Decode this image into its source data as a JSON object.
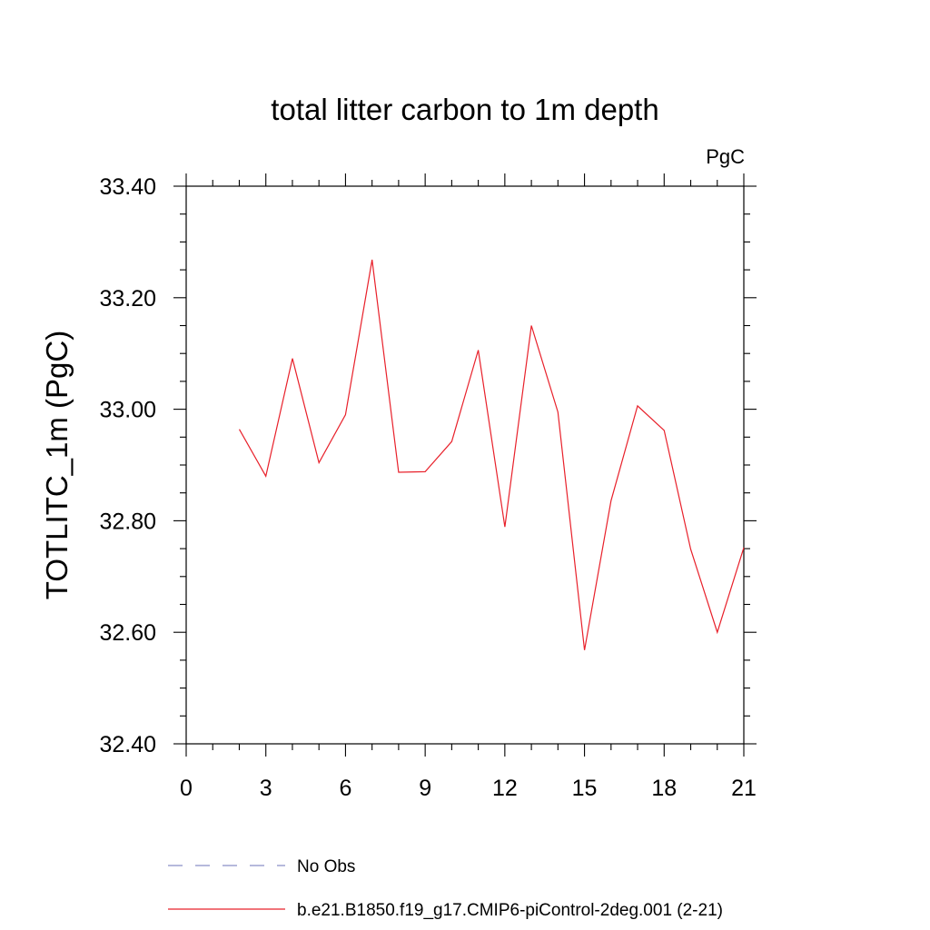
{
  "chart_data": {
    "type": "line",
    "title": "total litter carbon to 1m depth",
    "units": "PgC",
    "ylabel": "TOTLITC_1m  (PgC)",
    "xlabel": "",
    "xlim": [
      0,
      21
    ],
    "ylim": [
      32.4,
      33.4
    ],
    "x_ticks": [
      "0",
      "3",
      "6",
      "9",
      "12",
      "15",
      "18",
      "21"
    ],
    "y_ticks": [
      "32.40",
      "32.60",
      "32.80",
      "33.00",
      "33.20",
      "33.40"
    ],
    "series": [
      {
        "name": "b.e21.B1850.f19_g17.CMIP6-piControl-2deg.001 (2-21)",
        "color": "#e8202a",
        "style": "solid",
        "x": [
          2,
          3,
          4,
          5,
          6,
          7,
          8,
          9,
          10,
          11,
          12,
          13,
          14,
          15,
          16,
          17,
          18,
          19,
          20,
          21
        ],
        "y": [
          32.964,
          32.88,
          33.091,
          32.904,
          32.99,
          33.268,
          32.887,
          32.888,
          32.942,
          33.106,
          32.789,
          33.15,
          32.995,
          32.568,
          32.836,
          33.006,
          32.962,
          32.749,
          32.6,
          32.752
        ]
      }
    ],
    "legend": [
      {
        "label": "No Obs",
        "color": "#8a8fc8",
        "style": "dashed"
      },
      {
        "label": "b.e21.B1850.f19_g17.CMIP6-piControl-2deg.001 (2-21)",
        "color": "#e8202a",
        "style": "solid"
      }
    ],
    "legend_placement": "bottom",
    "grid": false
  }
}
